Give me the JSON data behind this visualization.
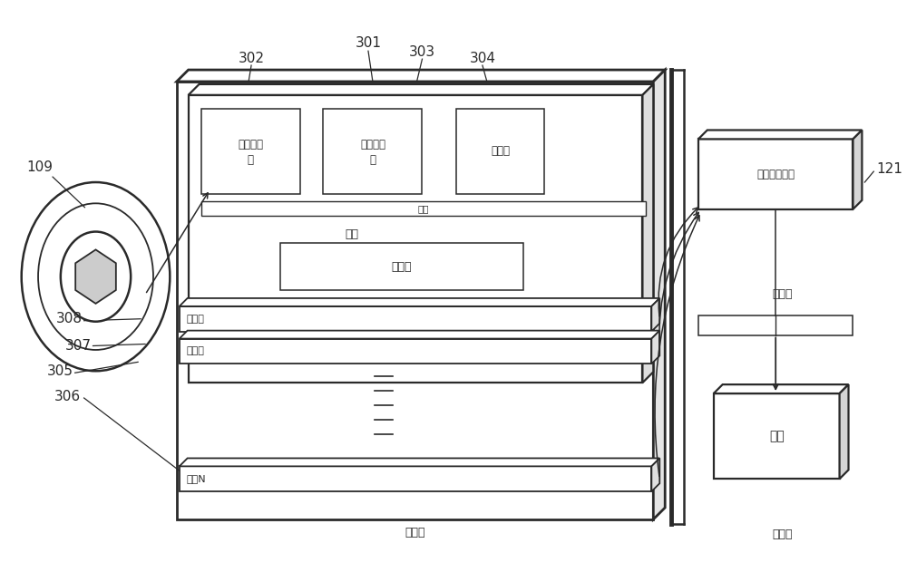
{
  "bg_color": "#ffffff",
  "line_color": "#2a2a2a",
  "fig_width": 10.0,
  "fig_height": 6.42,
  "labels": {
    "109": "109",
    "302": "302",
    "301": "301",
    "303": "303",
    "304": "304",
    "308": "308",
    "307": "307",
    "305": "305",
    "306": "306",
    "121": "121",
    "scan_room": "扫描间",
    "equipment_room": "设备间",
    "operation_room": "操作间",
    "superconducting_filter_1": "超导滤波",
    "superconducting_filter_2": "器",
    "rf_amplifier_1": "射频放大",
    "rf_amplifier_2": "器",
    "mixer": "混频器",
    "cold_plate": "冷板",
    "cold_head": "冷头",
    "refrigerator": "制冷器",
    "channel1": "通道一",
    "channel2": "通道二",
    "channelN": "通道N",
    "image_reconstruction": "图像重建单元",
    "host": "主机"
  }
}
